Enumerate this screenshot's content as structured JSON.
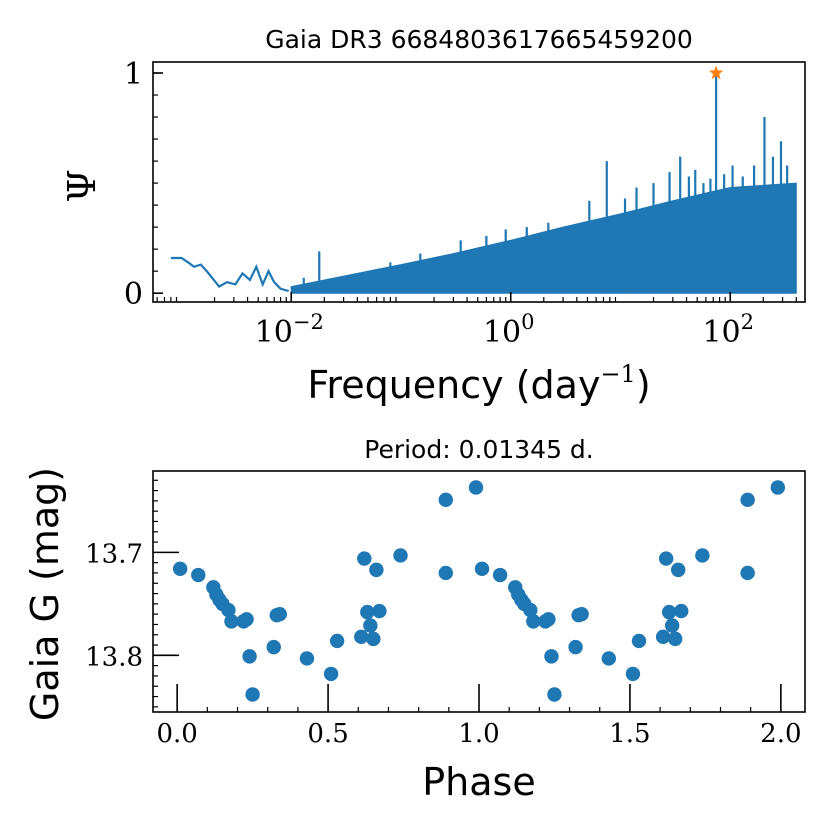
{
  "chart_data": [
    {
      "type": "line",
      "title": "Gaia DR3 6684803617665459200",
      "xlabel": "Frequency (day",
      "xlabel_sup": "−1",
      "xlabel_close": ")",
      "ylabel": "Ψ",
      "xscale": "log",
      "xlim": [
        0.00055,
        480
      ],
      "ylim": [
        -0.04,
        1.05
      ],
      "x_ticks": [
        {
          "value": 0.01,
          "base": "10",
          "exp": "−2"
        },
        {
          "value": 1,
          "base": "10",
          "exp": "0"
        },
        {
          "value": 100,
          "base": "10",
          "exp": "2"
        }
      ],
      "y_ticks": [
        {
          "value": 0,
          "label": "0"
        },
        {
          "value": 1,
          "label": "1"
        }
      ],
      "series": [
        {
          "name": "periodogram",
          "color": "#1f77b4",
          "x": [
            0.0008,
            0.001,
            0.00115,
            0.0013,
            0.0015,
            0.0017,
            0.0019,
            0.0022,
            0.0026,
            0.0031,
            0.0036,
            0.0042,
            0.0048,
            0.0055,
            0.0062,
            0.007,
            0.008,
            0.0095
          ],
          "y": [
            0.16,
            0.16,
            0.14,
            0.12,
            0.13,
            0.1,
            0.07,
            0.03,
            0.05,
            0.04,
            0.09,
            0.06,
            0.12,
            0.04,
            0.1,
            0.05,
            0.02,
            0.01
          ]
        },
        {
          "name": "peak",
          "color": "#ff7f0e",
          "marker": "star",
          "x": [
            74.35
          ],
          "y": [
            1.0
          ]
        }
      ],
      "envelope_lower": [
        [
          0.01,
          0.0
        ],
        [
          0.1,
          0.0
        ],
        [
          1,
          0.0
        ],
        [
          10,
          0.0
        ],
        [
          100,
          0.0
        ],
        [
          400,
          0.0
        ]
      ],
      "envelope_upper": [
        [
          0.01,
          0.03
        ],
        [
          0.02,
          0.06
        ],
        [
          0.05,
          0.1
        ],
        [
          0.1,
          0.13
        ],
        [
          0.3,
          0.18
        ],
        [
          1,
          0.24
        ],
        [
          3,
          0.3
        ],
        [
          10,
          0.36
        ],
        [
          30,
          0.42
        ],
        [
          100,
          0.48
        ],
        [
          400,
          0.5
        ]
      ],
      "spikes": [
        [
          0.013,
          0.07
        ],
        [
          0.018,
          0.19
        ],
        [
          0.035,
          0.08
        ],
        [
          0.08,
          0.14
        ],
        [
          0.15,
          0.18
        ],
        [
          0.35,
          0.24
        ],
        [
          0.6,
          0.26
        ],
        [
          0.9,
          0.29
        ],
        [
          1.4,
          0.3
        ],
        [
          2.2,
          0.32
        ],
        [
          3.2,
          0.27
        ],
        [
          5.2,
          0.42
        ],
        [
          7.5,
          0.6
        ],
        [
          11,
          0.43
        ],
        [
          14,
          0.48
        ],
        [
          20,
          0.5
        ],
        [
          28,
          0.55
        ],
        [
          35,
          0.62
        ],
        [
          42,
          0.53
        ],
        [
          48,
          0.56
        ],
        [
          57,
          0.5
        ],
        [
          66,
          0.52
        ],
        [
          74.35,
          1.0
        ],
        [
          88,
          0.54
        ],
        [
          105,
          0.58
        ],
        [
          130,
          0.53
        ],
        [
          165,
          0.58
        ],
        [
          205,
          0.8
        ],
        [
          245,
          0.62
        ],
        [
          290,
          0.69
        ],
        [
          330,
          0.58
        ],
        [
          380,
          0.46
        ]
      ]
    },
    {
      "type": "scatter",
      "title": "Period: 0.01345 d.",
      "xlabel": "Phase",
      "ylabel": "Gaia G (mag)",
      "xlim": [
        -0.08,
        2.08
      ],
      "ylim": [
        13.855,
        13.621
      ],
      "y_inverted": true,
      "x_ticks": [
        {
          "value": 0,
          "label": "0.0"
        },
        {
          "value": 0.5,
          "label": "0.5"
        },
        {
          "value": 1,
          "label": "1.0"
        },
        {
          "value": 1.5,
          "label": "1.5"
        },
        {
          "value": 2,
          "label": "2.0"
        }
      ],
      "y_ticks": [
        {
          "value": 13.7,
          "label": "13.7"
        },
        {
          "value": 13.8,
          "label": "13.8"
        }
      ],
      "series": [
        {
          "name": "observations",
          "color": "#1f77b4",
          "x": [
            0.01,
            0.07,
            0.12,
            0.13,
            0.14,
            0.15,
            0.17,
            0.18,
            0.22,
            0.23,
            0.24,
            0.25,
            0.32,
            0.33,
            0.34,
            0.43,
            0.51,
            0.53,
            0.61,
            0.62,
            0.63,
            0.64,
            0.65,
            0.66,
            0.67,
            0.74,
            0.89,
            0.89,
            0.99
          ],
          "y": [
            13.716,
            13.722,
            13.734,
            13.741,
            13.746,
            13.75,
            13.756,
            13.767,
            13.767,
            13.765,
            13.801,
            13.838,
            13.792,
            13.761,
            13.76,
            13.803,
            13.818,
            13.786,
            13.782,
            13.706,
            13.758,
            13.771,
            13.784,
            13.717,
            13.757,
            13.703,
            13.649,
            13.72,
            13.637
          ]
        }
      ]
    }
  ]
}
